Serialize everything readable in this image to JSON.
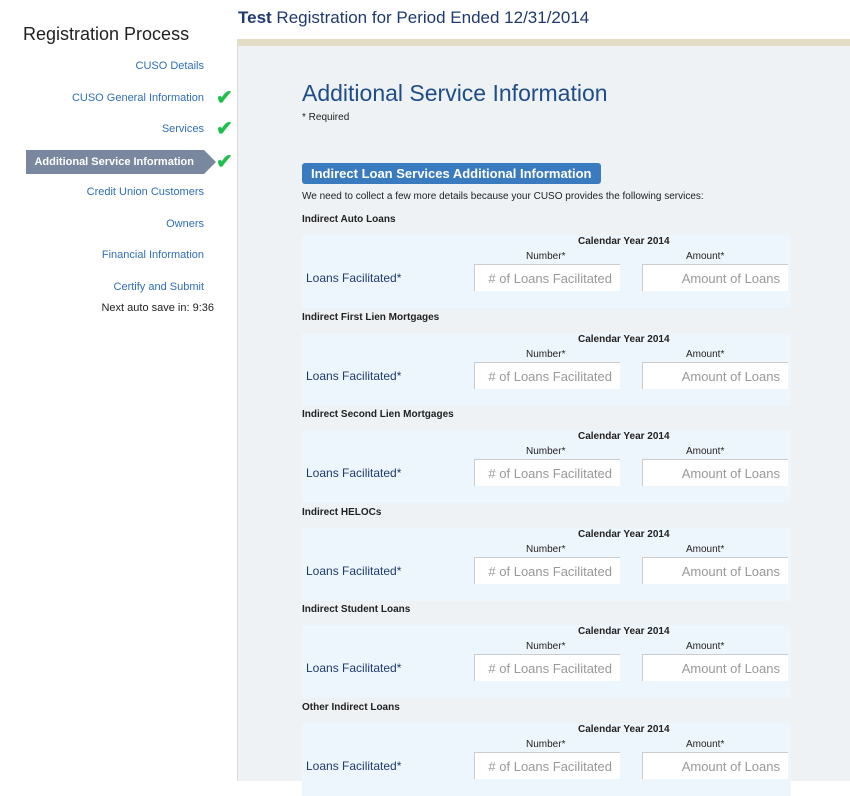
{
  "header": {
    "bold": "Test",
    "rest": " Registration for Period Ended 12/31/2014"
  },
  "sidebar": {
    "title": "Registration Process",
    "items": [
      {
        "label": "CUSO Details",
        "done": false
      },
      {
        "label": "CUSO General Information",
        "done": true
      },
      {
        "label": "Services",
        "done": true
      },
      {
        "label": "Additional Service Information",
        "done": true,
        "active": true
      },
      {
        "label": "Credit Union Customers",
        "done": false
      },
      {
        "label": "Owners",
        "done": false
      },
      {
        "label": "Financial Information",
        "done": false
      },
      {
        "label": "Certify and Submit",
        "done": false
      }
    ],
    "autosave": "Next auto save in: 9:36"
  },
  "main": {
    "title": "Additional Service Information",
    "required": "* Required",
    "section": "Indirect Loan Services Additional Information",
    "intro": "We need to collect a few more details because your CUSO provides the following services:",
    "calendar": "Calendar Year 2014",
    "number_label": "Number*",
    "amount_label": "Amount*",
    "row_label": "Loans Facilitated*",
    "number_placeholder": "# of Loans Facilitated",
    "amount_placeholder": "Amount of Loans",
    "blocks": [
      "Indirect Auto Loans",
      "Indirect First Lien Mortgages",
      "Indirect Second Lien Mortgages",
      "Indirect HELOCs",
      "Indirect Student Loans",
      "Other Indirect Loans"
    ]
  },
  "colors": {
    "accent": "#3a7bbf",
    "check": "#1fbf4c",
    "active_nav": "#7a889f"
  }
}
